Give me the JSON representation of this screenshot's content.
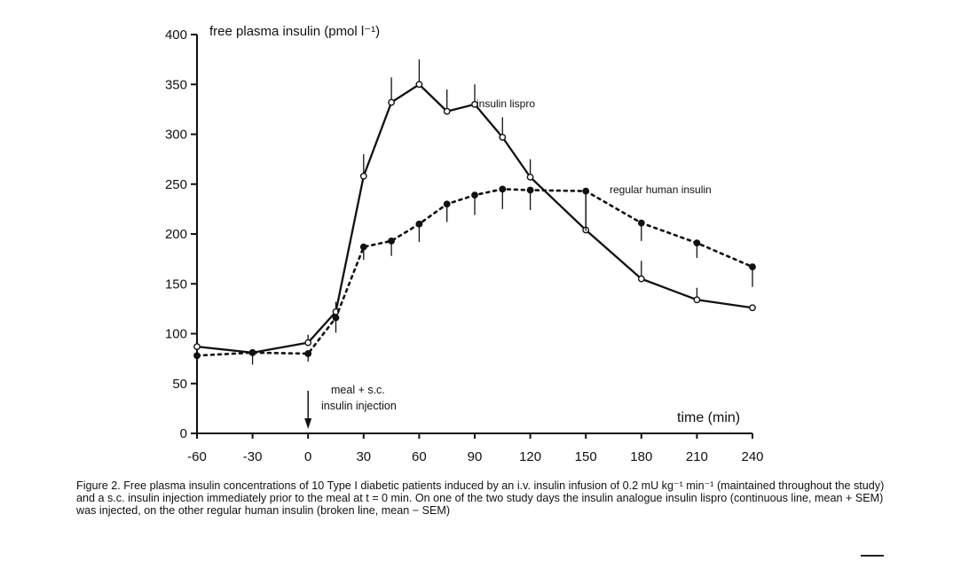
{
  "chart_data": {
    "type": "line",
    "ylabel": "free plasma insulin (pmol l⁻¹)",
    "xlabel": "time (min)",
    "xlim": [
      -60,
      240
    ],
    "ylim": [
      0,
      400
    ],
    "xticks": [
      -60,
      -30,
      0,
      30,
      60,
      90,
      120,
      150,
      180,
      210,
      240
    ],
    "yticks": [
      0,
      50,
      100,
      150,
      200,
      250,
      300,
      350,
      400
    ],
    "grid": false,
    "series": [
      {
        "name": "insulin lispro",
        "style": "solid",
        "marker": "open-circle",
        "x": [
          -60,
          -30,
          0,
          15,
          30,
          45,
          60,
          75,
          90,
          105,
          120,
          150,
          180,
          210,
          240
        ],
        "y": [
          87,
          81,
          91,
          122,
          258,
          332,
          350,
          323,
          330,
          297,
          257,
          204,
          155,
          134,
          126
        ],
        "sem": [
          0,
          0,
          8,
          10,
          22,
          25,
          25,
          22,
          20,
          20,
          18,
          40,
          18,
          12,
          0
        ]
      },
      {
        "name": "regular human insulin",
        "style": "dotted",
        "marker": "filled-circle",
        "x": [
          -60,
          -30,
          0,
          15,
          30,
          45,
          60,
          75,
          90,
          105,
          120,
          150,
          180,
          210,
          240
        ],
        "y": [
          78,
          81,
          80,
          116,
          187,
          193,
          210,
          230,
          239,
          245,
          244,
          243,
          211,
          191,
          167
        ],
        "sem": [
          8,
          12,
          8,
          15,
          13,
          15,
          18,
          18,
          20,
          20,
          20,
          40,
          18,
          15,
          20
        ]
      }
    ],
    "annotations": {
      "meal": "meal + s.c.",
      "injection": "insulin injection",
      "meal_time": 0
    }
  },
  "caption": {
    "text": "Figure 2.  Free plasma insulin concentrations of 10 Type I diabetic patients induced by an i.v. insulin infusion of 0.2 mU kg⁻¹ min⁻¹ (maintained throughout the study) and a s.c. insulin injection immediately prior to the meal at t = 0 min. On one of the two study days the insulin analogue insulin lispro (continuous line, mean + SEM) was injected, on the other regular human insulin (broken line, mean − SEM)"
  }
}
